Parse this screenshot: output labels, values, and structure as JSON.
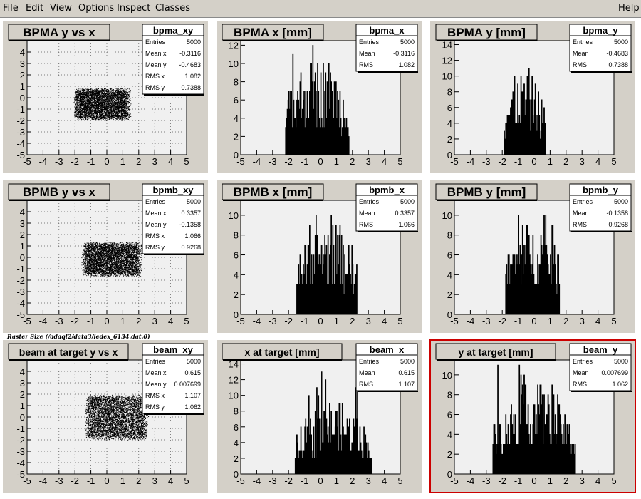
{
  "menu": {
    "file": "File",
    "edit": "Edit",
    "view": "View",
    "options": "Options",
    "inspect": "Inspect",
    "classes": "Classes",
    "help": "Help"
  },
  "footer_label": "Raster Size (/adaql2/data3/ledex_6134.dat.0)",
  "colors": {
    "pad_bg": "#d4d0c8",
    "frame_bg": "#f0f0f0",
    "marker": "#000000",
    "selected_border": "#cc0000"
  },
  "chart_data": [
    {
      "id": "bpma_xy",
      "type": "scatter",
      "title": "BPMA y vs x",
      "stat_name": "bpma_xy",
      "stats": [
        [
          "Entries",
          "5000"
        ],
        [
          "Mean x",
          "-0.3116"
        ],
        [
          "Mean y",
          "-0.4683"
        ],
        [
          "RMS x",
          "1.082"
        ],
        [
          "RMS y",
          "0.7388"
        ]
      ],
      "xlim": [
        -5,
        5
      ],
      "ylim": [
        -5,
        5
      ],
      "xticks": [
        -5,
        -4,
        -3,
        -2,
        -1,
        0,
        1,
        2,
        3,
        4,
        5
      ],
      "yticks": [
        -5,
        -4,
        -3,
        -2,
        -1,
        0,
        1,
        2,
        3,
        4
      ],
      "grid": true,
      "cloud": {
        "x_range": [
          -1.9,
          1.3
        ],
        "y_range": [
          -1.8,
          0.7
        ],
        "n": 5000
      }
    },
    {
      "id": "bpma_x",
      "type": "bar",
      "title": "BPMA x [mm]",
      "stat_name": "bpma_x",
      "stats": [
        [
          "Entries",
          "5000"
        ],
        [
          "Mean",
          "-0.3116"
        ],
        [
          "RMS",
          "1.082"
        ]
      ],
      "xlim": [
        -5,
        5
      ],
      "ylim": [
        0,
        12.5
      ],
      "xticks": [
        -5,
        -4,
        -3,
        -2,
        -1,
        0,
        1,
        2,
        3,
        4,
        5
      ],
      "yticks": [
        0,
        2,
        4,
        6,
        8,
        10,
        12
      ],
      "hist": {
        "lo": -2.2,
        "hi": 1.8,
        "base": 4,
        "peak": 7,
        "max": 12
      }
    },
    {
      "id": "bpma_y",
      "type": "bar",
      "title": "BPMA y [mm]",
      "stat_name": "bpma_y",
      "stats": [
        [
          "Entries",
          "5000"
        ],
        [
          "Mean",
          "-0.4683"
        ],
        [
          "RMS",
          "0.7388"
        ]
      ],
      "xlim": [
        -5,
        5
      ],
      "ylim": [
        0,
        14.5
      ],
      "xticks": [
        -5,
        -4,
        -3,
        -2,
        -1,
        0,
        1,
        2,
        3,
        4,
        5
      ],
      "yticks": [
        0,
        2,
        4,
        6,
        8,
        10,
        12,
        14
      ],
      "hist": {
        "lo": -1.9,
        "hi": 0.7,
        "base": 4,
        "peak": 7,
        "max": 12
      }
    },
    {
      "id": "bpmb_xy",
      "type": "scatter",
      "title": "BPMB y vs x",
      "stat_name": "bpmb_xy",
      "stats": [
        [
          "Entries",
          "5000"
        ],
        [
          "Mean x",
          "0.3357"
        ],
        [
          "Mean y",
          "-0.1358"
        ],
        [
          "RMS x",
          "1.066"
        ],
        [
          "RMS y",
          "0.9268"
        ]
      ],
      "xlim": [
        -5,
        5
      ],
      "ylim": [
        -5,
        5
      ],
      "xticks": [
        -5,
        -4,
        -3,
        -2,
        -1,
        0,
        1,
        2,
        3,
        4,
        5
      ],
      "yticks": [
        -5,
        -4,
        -3,
        -2,
        -1,
        0,
        1,
        2,
        3,
        4
      ],
      "grid": true,
      "cloud": {
        "x_range": [
          -1.4,
          2.0
        ],
        "y_range": [
          -1.5,
          1.2
        ],
        "n": 5000
      }
    },
    {
      "id": "bpmb_x",
      "type": "bar",
      "title": "BPMB x [mm]",
      "stat_name": "bpmb_x",
      "stats": [
        [
          "Entries",
          "5000"
        ],
        [
          "Mean",
          "0.3357"
        ],
        [
          "RMS",
          "1.066"
        ]
      ],
      "xlim": [
        -5,
        5
      ],
      "ylim": [
        0,
        11.5
      ],
      "xticks": [
        -5,
        -4,
        -3,
        -2,
        -1,
        0,
        1,
        2,
        3,
        4,
        5
      ],
      "yticks": [
        0,
        2,
        4,
        6,
        8,
        10
      ],
      "hist": {
        "lo": -1.5,
        "hi": 2.3,
        "base": 4,
        "peak": 6,
        "max": 11
      }
    },
    {
      "id": "bpmb_y",
      "type": "bar",
      "title": "BPMB y [mm]",
      "stat_name": "bpmb_y",
      "stats": [
        [
          "Entries",
          "5000"
        ],
        [
          "Mean",
          "-0.1358"
        ],
        [
          "RMS",
          "0.9268"
        ]
      ],
      "xlim": [
        -5,
        5
      ],
      "ylim": [
        0,
        11.5
      ],
      "xticks": [
        -5,
        -4,
        -3,
        -2,
        -1,
        0,
        1,
        2,
        3,
        4,
        5
      ],
      "yticks": [
        0,
        2,
        4,
        6,
        8,
        10
      ],
      "hist": {
        "lo": -1.8,
        "hi": 1.6,
        "base": 4,
        "peak": 6,
        "max": 11
      }
    },
    {
      "id": "beam_xy",
      "type": "scatter",
      "title": "beam at target y vs x",
      "stat_name": "beam_xy",
      "stats": [
        [
          "Entries",
          "5000"
        ],
        [
          "Mean x",
          "0.615"
        ],
        [
          "Mean y",
          "0.007699"
        ],
        [
          "RMS x",
          "1.107"
        ],
        [
          "RMS y",
          "1.062"
        ]
      ],
      "xlim": [
        -5,
        5
      ],
      "ylim": [
        -5,
        5
      ],
      "xticks": [
        -5,
        -4,
        -3,
        -2,
        -1,
        0,
        1,
        2,
        3,
        4,
        5
      ],
      "yticks": [
        -5,
        -4,
        -3,
        -2,
        -1,
        0,
        1,
        2,
        3,
        4
      ],
      "grid": true,
      "cloud": {
        "x_range": [
          -1.2,
          2.4
        ],
        "y_range": [
          -1.8,
          1.8
        ],
        "n": 5000
      }
    },
    {
      "id": "beam_x",
      "type": "bar",
      "title": "x at target [mm]",
      "stat_name": "beam_x",
      "stats": [
        [
          "Entries",
          "5000"
        ],
        [
          "Mean",
          "0.615"
        ],
        [
          "RMS",
          "1.107"
        ]
      ],
      "xlim": [
        -5,
        5
      ],
      "ylim": [
        0,
        14.5
      ],
      "xticks": [
        -5,
        -4,
        -3,
        -2,
        -1,
        0,
        1,
        2,
        3,
        4,
        5
      ],
      "yticks": [
        0,
        2,
        4,
        6,
        8,
        10,
        12,
        14
      ],
      "hist": {
        "lo": -1.6,
        "hi": 3.2,
        "base": 3,
        "peak": 6,
        "max": 13
      }
    },
    {
      "id": "beam_y",
      "type": "bar",
      "title": "y at target [mm]",
      "stat_name": "beam_y",
      "stats": [
        [
          "Entries",
          "5000"
        ],
        [
          "Mean",
          "0.007699"
        ],
        [
          "RMS",
          "1.062"
        ]
      ],
      "xlim": [
        -5,
        5
      ],
      "ylim": [
        0,
        11.5
      ],
      "xticks": [
        -5,
        -4,
        -3,
        -2,
        -1,
        0,
        1,
        2,
        3,
        4,
        5
      ],
      "yticks": [
        0,
        2,
        4,
        6,
        8,
        10
      ],
      "hist": {
        "lo": -2.6,
        "hi": 2.6,
        "base": 3,
        "peak": 6,
        "max": 11
      },
      "selected": true
    }
  ]
}
